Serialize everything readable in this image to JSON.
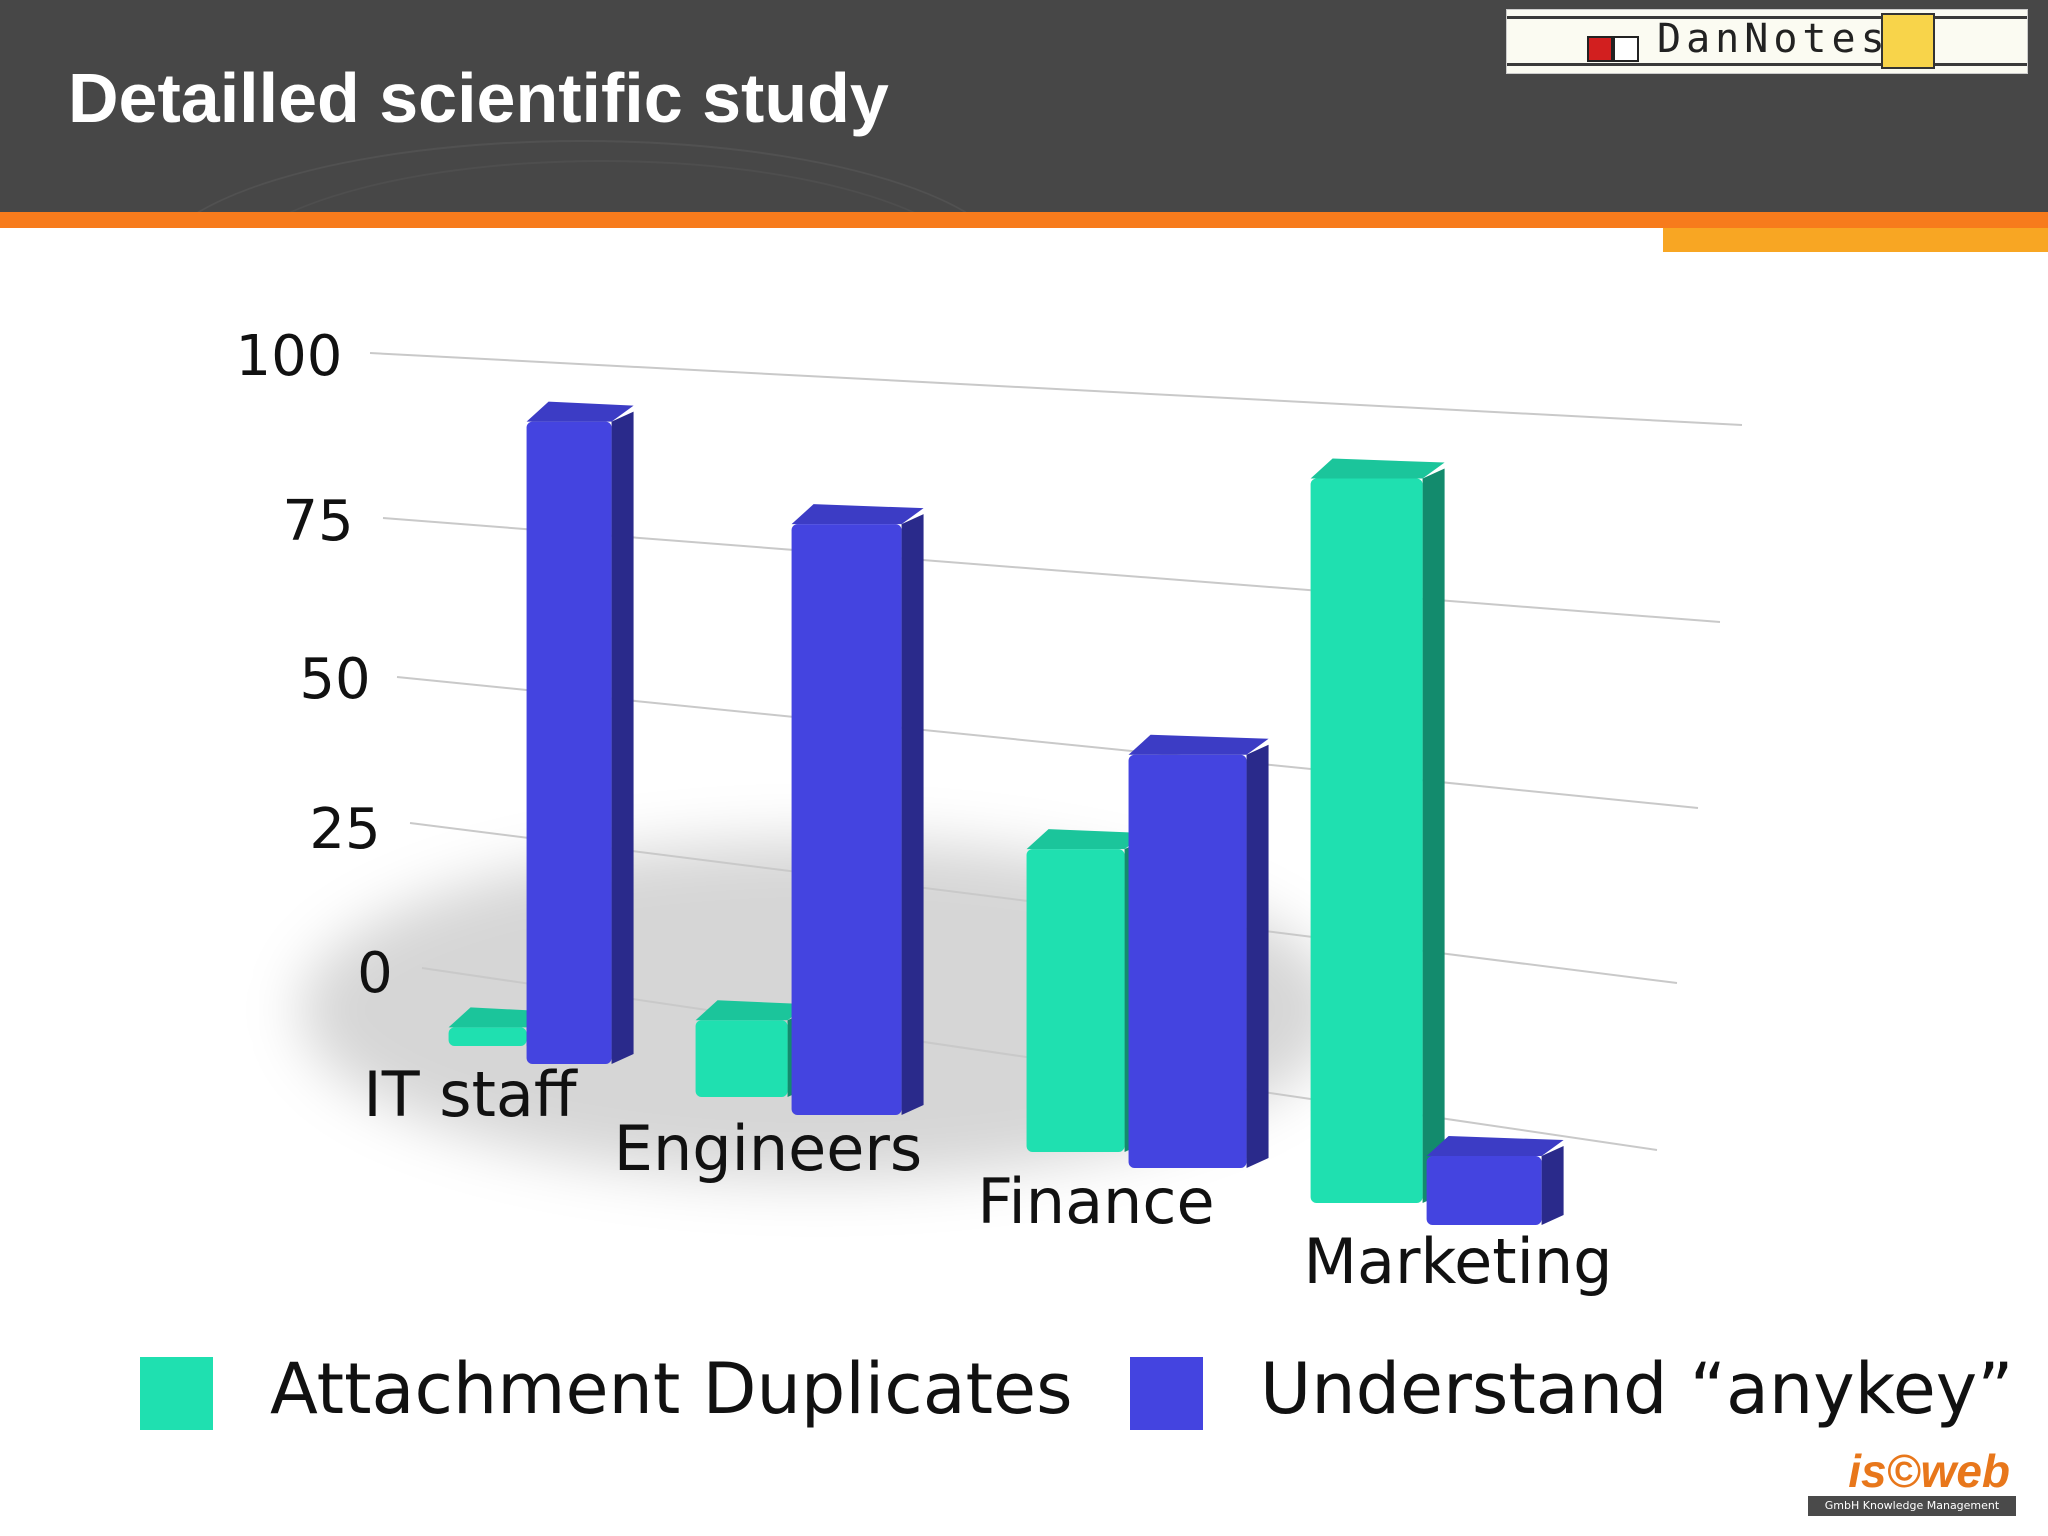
{
  "slide": {
    "title": "Detailled scientific study",
    "logo_text": "DanNotes",
    "footer_logo_text": "is©web",
    "footer_logo_subtext": "GmbH Knowledge Management"
  },
  "colors": {
    "header_bg": "#474747",
    "accent_orange": "#f77b1c",
    "accent_light_orange": "#f8a623",
    "series_attachment": "#1fe0b0",
    "series_understand": "#4444e0"
  },
  "icons": {
    "logo": "dannotes-logo",
    "footer_logo": "isweb-logo"
  },
  "chart_data": {
    "type": "bar",
    "style": "3d-perspective",
    "categories": [
      "IT staff",
      "Engineers",
      "Finance",
      "Marketing"
    ],
    "series": [
      {
        "name": "Attachment Duplicates",
        "color": "#1fe0b0",
        "values": [
          3,
          12,
          45,
          98
        ]
      },
      {
        "name": "Understand “anykey”",
        "color": "#4444e0",
        "values": [
          97,
          87,
          60,
          10
        ]
      }
    ],
    "yticks": [
      "100",
      "75",
      "50",
      "25",
      "0"
    ],
    "ylim": [
      0,
      100
    ],
    "grid": true,
    "legend": "bottom"
  }
}
